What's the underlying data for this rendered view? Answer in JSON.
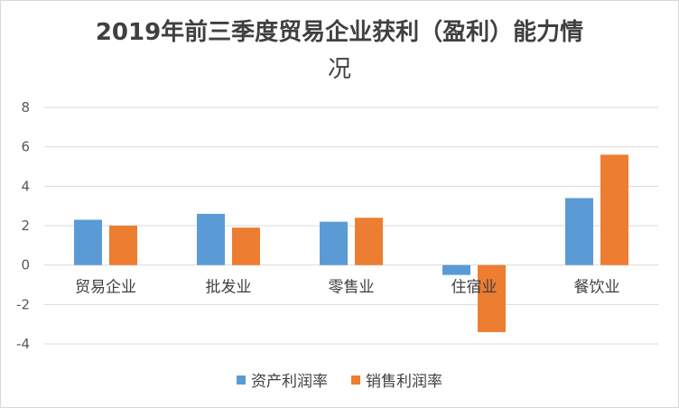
{
  "chart_data": {
    "type": "bar",
    "title_line1": "2019年前三季度贸易企业获利（盈利）能力情",
    "title_line2": "况",
    "categories": [
      "贸易企业",
      "批发业",
      "零售业",
      "住宿业",
      "餐饮业"
    ],
    "series": [
      {
        "name": "资产利润率",
        "values": [
          2.3,
          2.6,
          2.2,
          -0.5,
          3.4
        ],
        "color": "#5b9bd5"
      },
      {
        "name": "销售利润率",
        "values": [
          2.0,
          1.9,
          2.4,
          -3.4,
          5.6
        ],
        "color": "#ed7d31"
      }
    ],
    "yticks": [
      "8",
      "6",
      "4",
      "2",
      "0",
      "-2",
      "-4"
    ],
    "ylim": [
      -4,
      8
    ],
    "grid": true,
    "legend_position": "bottom"
  }
}
